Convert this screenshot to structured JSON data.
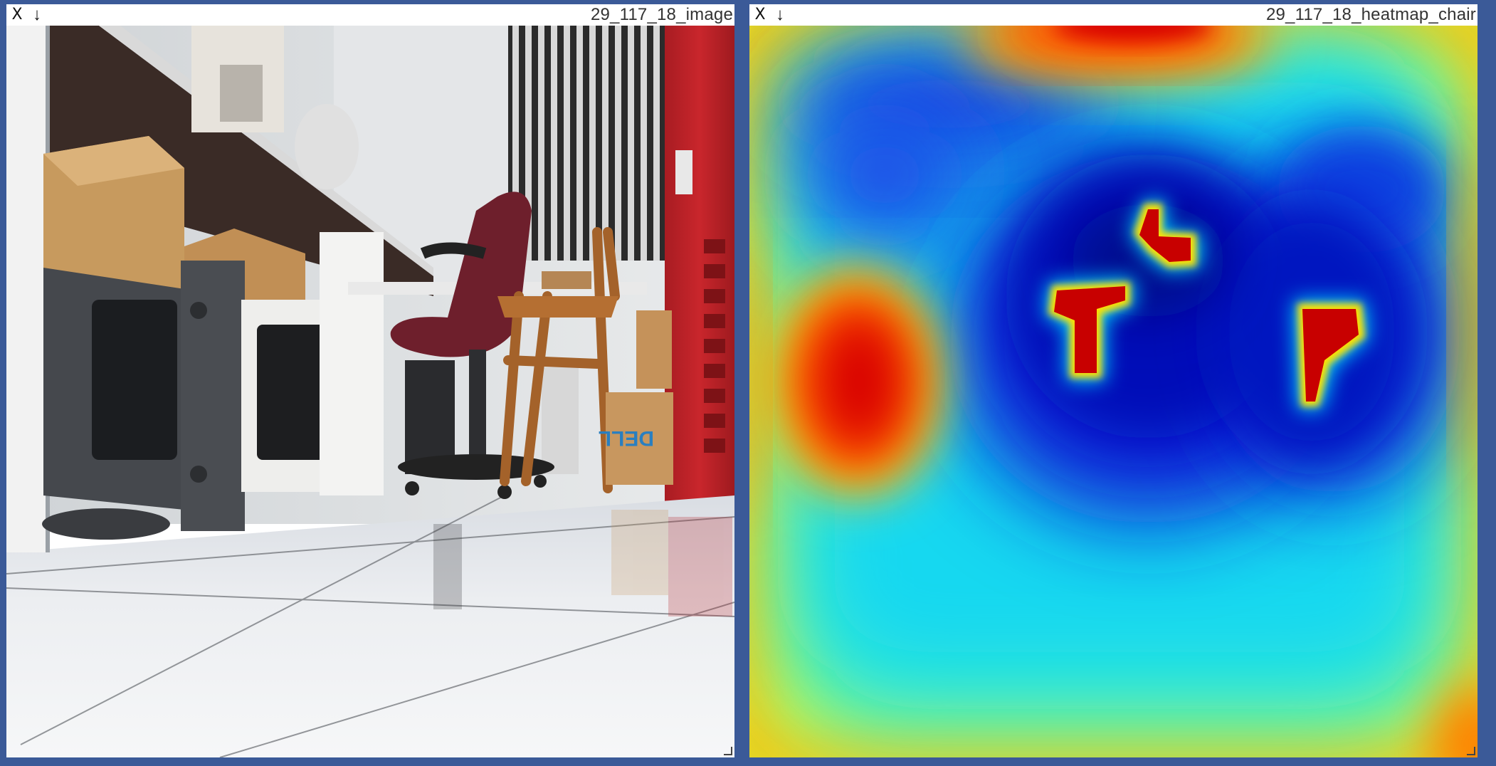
{
  "panels": [
    {
      "title": "29_117_18_image",
      "close_label": "X",
      "download_label": "↓",
      "close_icon": "x-icon",
      "download_icon": "arrow-down-icon"
    },
    {
      "title": "29_117_18_heatmap_chair",
      "close_label": "X",
      "download_label": "↓",
      "close_icon": "x-icon",
      "download_icon": "arrow-down-icon"
    }
  ],
  "colors": {
    "background": "#3b5a98",
    "heat_low": "#0000c8",
    "heat_mid": "#00e0ff",
    "heat_high_mid": "#ffff00",
    "heat_high": "#c80000"
  }
}
